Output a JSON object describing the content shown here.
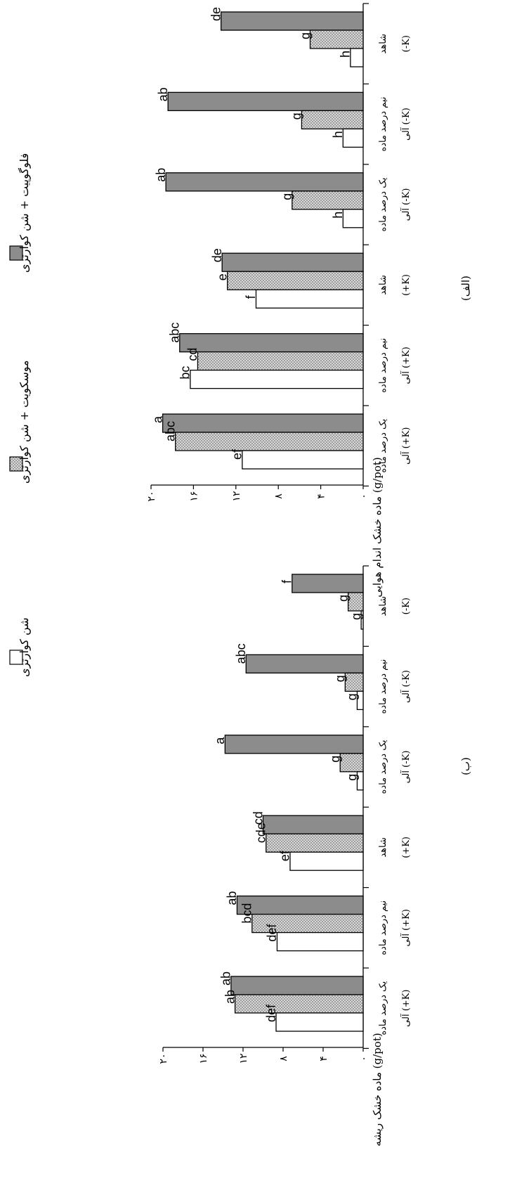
{
  "legend": [
    {
      "label": "شن کوارتزی",
      "fill": "#ffffff"
    },
    {
      "label": "موسکویت + شن کوارتزی",
      "fill": "dots"
    },
    {
      "label": "فلوگوپیت + شن کوارتزی",
      "fill": "#8c8c8c"
    }
  ],
  "colors": {
    "plain": "#ffffff",
    "dots": "#d2d2d2",
    "dark": "#8c8c8c",
    "stroke": "#000000"
  },
  "chart_data": [
    {
      "type": "bar",
      "orientation": "horizontal",
      "panel_label": "(الف)",
      "ylabel": "ماده خشک اندام هوایی (g/pot)",
      "yticks": [
        0,
        4,
        8,
        12,
        16,
        20
      ],
      "ytick_labels": [
        "۰",
        "۴",
        "۸",
        "۱۲",
        "۱۶",
        "۲۰"
      ],
      "ylim": [
        0,
        20
      ],
      "categories": [
        {
          "line1": "شاهد",
          "line2": "(-K)"
        },
        {
          "line1": "نیم درصد ماده",
          "line2": "آلی (-K)"
        },
        {
          "line1": "یک درصد ماده",
          "line2": "آلی (-K)"
        },
        {
          "line1": "شاهد",
          "line2": "(+K)"
        },
        {
          "line1": "نیم درصد ماده",
          "line2": "آلی (+K)"
        },
        {
          "line1": "یک درصد ماده",
          "line2": "آلی (+K)"
        }
      ],
      "series": [
        {
          "name": "شن کوارتزی",
          "values": [
            1.2,
            1.9,
            1.9,
            10.1,
            16.3,
            11.4
          ],
          "letters": [
            "h",
            "h",
            "h",
            "f",
            "bc",
            "ef"
          ]
        },
        {
          "name": "موسکویت + شن کوارتزی",
          "values": [
            5.0,
            5.8,
            6.7,
            12.8,
            15.6,
            17.7
          ],
          "letters": [
            "g",
            "g",
            "g",
            "e",
            "cd",
            "abc"
          ]
        },
        {
          "name": "فلوگوپیت + شن کوارتزی",
          "values": [
            13.4,
            18.4,
            18.6,
            13.3,
            17.3,
            18.9
          ],
          "letters": [
            "de",
            "ab",
            "ab",
            "de",
            "abc",
            "a"
          ]
        }
      ]
    },
    {
      "type": "bar",
      "orientation": "horizontal",
      "panel_label": "(ب)",
      "ylabel": "ماده خشک ریشه (g/pot)",
      "yticks": [
        0,
        4,
        8,
        12,
        16,
        20
      ],
      "ytick_labels": [
        "۰",
        "۴",
        "۸",
        "۱۲",
        "۱۶",
        "۲۰"
      ],
      "ylim": [
        0,
        20
      ],
      "categories": [
        {
          "line1": "شاهد",
          "line2": "(-K)"
        },
        {
          "line1": "نیم درصد ماده",
          "line2": "آلی (-K)"
        },
        {
          "line1": "یک درصد ماده",
          "line2": "آلی (-K)"
        },
        {
          "line1": "شاهد",
          "line2": "(+K)"
        },
        {
          "line1": "نیم درصد ماده",
          "line2": "آلی (+K)"
        },
        {
          "line1": "یک درصد ماده",
          "line2": "آلی (+K)"
        }
      ],
      "series": [
        {
          "name": "شن کوارتزی",
          "values": [
            0.2,
            0.6,
            0.6,
            7.3,
            8.6,
            8.7
          ],
          "letters": [
            "g",
            "g",
            "g",
            "ef",
            "def",
            "def"
          ]
        },
        {
          "name": "موسکویت + شن کوارتزی",
          "values": [
            1.5,
            1.8,
            2.3,
            9.7,
            11.1,
            12.8
          ],
          "letters": [
            "g",
            "g",
            "g",
            "cde",
            "bcd",
            "ab"
          ]
        },
        {
          "name": "فلوگوپیت + شن کوارتزی",
          "values": [
            7.1,
            11.7,
            13.8,
            10.0,
            12.6,
            13.2
          ],
          "letters": [
            "f",
            "abc",
            "a",
            "cd",
            "ab",
            "ab"
          ]
        }
      ]
    }
  ]
}
